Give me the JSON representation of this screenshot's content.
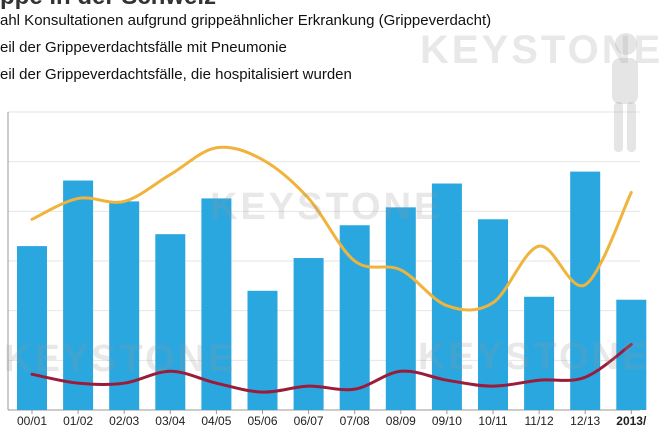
{
  "page": {
    "title": "ppe in der Schweiz",
    "watermark_text": "KEYSTONE",
    "colors": {
      "bar": "#2aa7df",
      "line_pneumonie": "#f0b43c",
      "line_hospital": "#9b1b3a",
      "axis": "#999999",
      "grid": "#e6e6e6"
    }
  },
  "chart_data": {
    "type": "bar",
    "categories": [
      "00/01",
      "01/02",
      "02/03",
      "03/04",
      "04/05",
      "05/06",
      "06/07",
      "07/08",
      "08/09",
      "09/10",
      "10/11",
      "11/12",
      "12/13",
      "2013/"
    ],
    "ylim": [
      0,
      100
    ],
    "grid": true,
    "legend_position": "top-left",
    "series": [
      {
        "name": "ahl Konsultationen aufgrund grippeähnlicher Erkrankung (Grippeverdacht)",
        "type": "bar",
        "values": [
          55,
          77,
          70,
          59,
          71,
          40,
          51,
          62,
          68,
          76,
          64,
          38,
          80,
          37
        ]
      },
      {
        "name": "eil der Grippeverdachtsfälle mit Pneumonie",
        "type": "line",
        "values": [
          64,
          71,
          70,
          79,
          88,
          84,
          71,
          50,
          47,
          35,
          36,
          55,
          42,
          73
        ]
      },
      {
        "name": "eil der Grippeverdachtsfälle, die hospitalisiert wurden",
        "type": "line",
        "values": [
          12,
          9,
          9,
          13,
          9,
          6,
          8,
          7,
          13,
          10,
          8,
          10,
          11,
          22
        ]
      }
    ]
  }
}
